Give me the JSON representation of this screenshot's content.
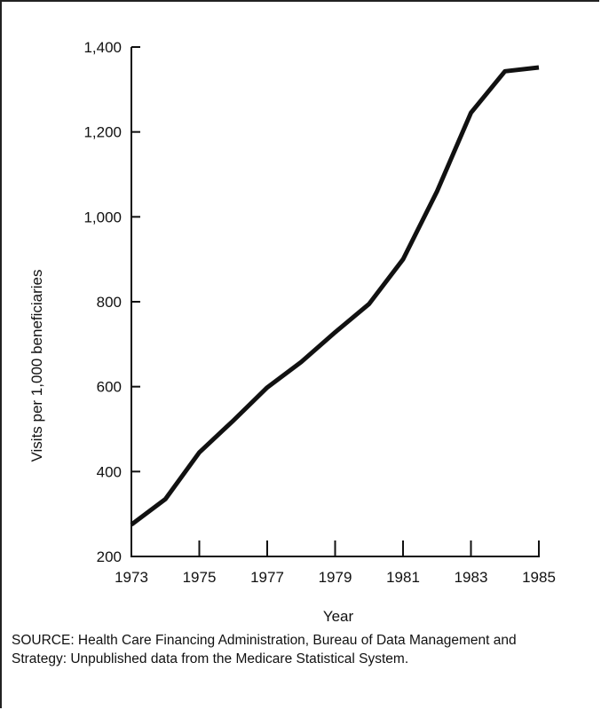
{
  "chart_data": {
    "type": "line",
    "title": "",
    "xlabel": "Year",
    "ylabel": "Visits per 1,000 beneficiaries",
    "x": [
      1973,
      1974,
      1975,
      1976,
      1977,
      1978,
      1979,
      1980,
      1981,
      1982,
      1983,
      1984,
      1985
    ],
    "series": [
      {
        "values": [
          275,
          335,
          445,
          520,
          598,
          658,
          728,
          795,
          900,
          1060,
          1245,
          1343,
          1352
        ]
      }
    ],
    "xlim": [
      1973,
      1985
    ],
    "ylim": [
      200,
      1400
    ],
    "x_ticks": [
      1973,
      1975,
      1977,
      1979,
      1981,
      1983,
      1985
    ],
    "x_tick_labels": [
      "1973",
      "1975",
      "1977",
      "1979",
      "1981",
      "1983",
      "1985"
    ],
    "y_ticks": [
      200,
      400,
      600,
      800,
      1000,
      1200,
      1400
    ],
    "y_tick_labels": [
      "200",
      "400",
      "600",
      "800",
      "1,000",
      "1,200",
      "1,400"
    ],
    "grid": false,
    "legend": "none",
    "line_color": "#111111"
  },
  "source_note": "SOURCE: Health Care Financing Administration, Bureau of Data Management and Strategy: Unpublished data from the Medicare Statistical System."
}
